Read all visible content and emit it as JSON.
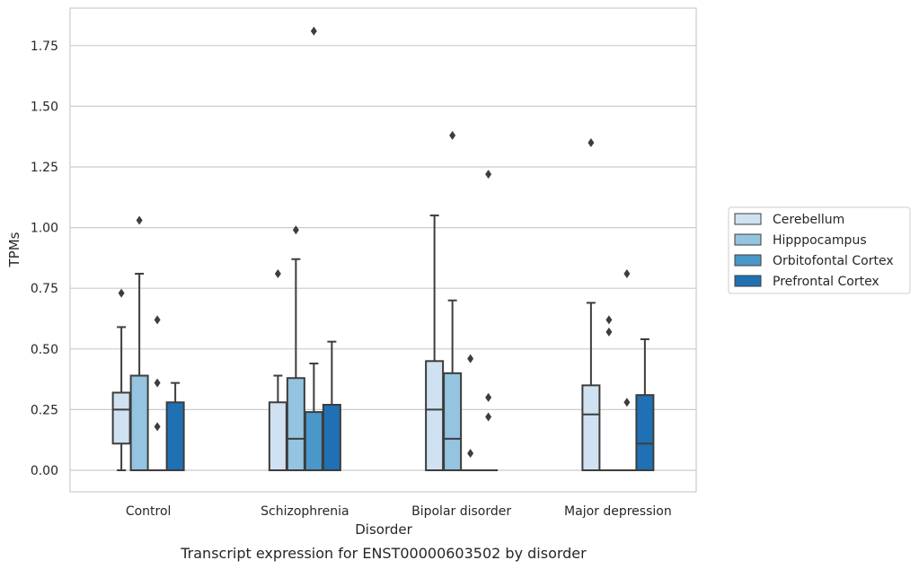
{
  "chart_data": {
    "type": "box",
    "title": "",
    "caption": "Transcript expression for ENST00000603502 by disorder",
    "xlabel": "Disorder",
    "ylabel": "TPMs",
    "ylim": [
      -0.09,
      1.91
    ],
    "yticks": [
      0.0,
      0.25,
      0.5,
      0.75,
      1.0,
      1.25,
      1.5,
      1.75
    ],
    "ytick_labels": [
      "0.00",
      "0.25",
      "0.50",
      "0.75",
      "1.00",
      "1.25",
      "1.50",
      "1.75"
    ],
    "grid": "horizontal",
    "legend_position": "right",
    "categories": [
      "Control",
      "Schizophrenia",
      "Bipolar disorder",
      "Major depression"
    ],
    "series": [
      {
        "name": "Cerebellum",
        "color": "#d0e1f2",
        "boxes": [
          {
            "q1": 0.11,
            "median": 0.25,
            "q3": 0.32,
            "whisker_low": 0.0,
            "whisker_high": 0.59,
            "outliers": [
              0.73
            ]
          },
          {
            "q1": 0.0,
            "median": 0.0,
            "q3": 0.28,
            "whisker_low": 0.0,
            "whisker_high": 0.39,
            "outliers": [
              0.81
            ]
          },
          {
            "q1": 0.0,
            "median": 0.25,
            "q3": 0.45,
            "whisker_low": 0.0,
            "whisker_high": 1.05,
            "outliers": []
          },
          {
            "q1": 0.0,
            "median": 0.23,
            "q3": 0.35,
            "whisker_low": 0.0,
            "whisker_high": 0.69,
            "outliers": [
              1.35
            ]
          }
        ]
      },
      {
        "name": "Hipppocampus",
        "color": "#94c4df",
        "boxes": [
          {
            "q1": 0.0,
            "median": 0.0,
            "q3": 0.39,
            "whisker_low": 0.0,
            "whisker_high": 0.81,
            "outliers": [
              1.03
            ]
          },
          {
            "q1": 0.0,
            "median": 0.13,
            "q3": 0.38,
            "whisker_low": 0.0,
            "whisker_high": 0.87,
            "outliers": [
              0.99
            ]
          },
          {
            "q1": 0.0,
            "median": 0.13,
            "q3": 0.4,
            "whisker_low": 0.0,
            "whisker_high": 0.7,
            "outliers": [
              1.38
            ]
          },
          {
            "q1": 0.0,
            "median": 0.0,
            "q3": 0.0,
            "whisker_low": 0.0,
            "whisker_high": 0.0,
            "outliers": [
              0.62,
              0.57
            ]
          }
        ]
      },
      {
        "name": "Orbitofontal Cortex",
        "color": "#4a98c9",
        "boxes": [
          {
            "q1": 0.0,
            "median": 0.0,
            "q3": 0.0,
            "whisker_low": 0.0,
            "whisker_high": 0.0,
            "outliers": [
              0.62,
              0.36,
              0.18
            ]
          },
          {
            "q1": 0.0,
            "median": 0.0,
            "q3": 0.24,
            "whisker_low": 0.0,
            "whisker_high": 0.44,
            "outliers": [
              1.81
            ]
          },
          {
            "q1": 0.0,
            "median": 0.0,
            "q3": 0.0,
            "whisker_low": 0.0,
            "whisker_high": 0.0,
            "outliers": [
              0.46,
              0.07
            ]
          },
          {
            "q1": 0.0,
            "median": 0.0,
            "q3": 0.0,
            "whisker_low": 0.0,
            "whisker_high": 0.0,
            "outliers": [
              0.81,
              0.28
            ]
          }
        ]
      },
      {
        "name": "Prefrontal Cortex",
        "color": "#2070b4",
        "boxes": [
          {
            "q1": 0.0,
            "median": 0.0,
            "q3": 0.28,
            "whisker_low": 0.0,
            "whisker_high": 0.36,
            "outliers": []
          },
          {
            "q1": 0.0,
            "median": 0.0,
            "q3": 0.27,
            "whisker_low": 0.0,
            "whisker_high": 0.53,
            "outliers": []
          },
          {
            "q1": 0.0,
            "median": 0.0,
            "q3": 0.0,
            "whisker_low": 0.0,
            "whisker_high": 0.0,
            "outliers": [
              1.22,
              0.3,
              0.22
            ]
          },
          {
            "q1": 0.0,
            "median": 0.11,
            "q3": 0.31,
            "whisker_low": 0.0,
            "whisker_high": 0.54,
            "outliers": []
          }
        ]
      }
    ]
  }
}
